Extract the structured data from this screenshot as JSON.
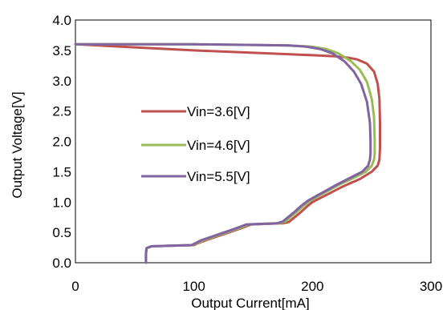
{
  "chart_data": {
    "type": "line",
    "title": "",
    "xlabel": "Output Current[mA]",
    "ylabel": "Output Voltage[V]",
    "xlim": [
      0,
      300
    ],
    "ylim": [
      0,
      4.0
    ],
    "x_ticks": [
      0,
      100,
      200,
      300
    ],
    "y_ticks": [
      0.0,
      0.5,
      1.0,
      1.5,
      2.0,
      2.5,
      3.0,
      3.5,
      4.0
    ],
    "x_tick_labels": [
      "0",
      "100",
      "200",
      "300"
    ],
    "y_tick_labels": [
      "0.0",
      "0.5",
      "1.0",
      "1.5",
      "2.0",
      "2.5",
      "3.0",
      "3.5",
      "4.0"
    ],
    "grid": false,
    "legend_position": "center-left",
    "series": [
      {
        "name": "Vin=3.6[V]",
        "color": "#c0504d",
        "points": [
          [
            0,
            3.6
          ],
          [
            50,
            3.55
          ],
          [
            100,
            3.5
          ],
          [
            150,
            3.46
          ],
          [
            200,
            3.42
          ],
          [
            220,
            3.4
          ],
          [
            230,
            3.38
          ],
          [
            238,
            3.35
          ],
          [
            246,
            3.28
          ],
          [
            252,
            3.15
          ],
          [
            255,
            2.95
          ],
          [
            256.5,
            2.7
          ],
          [
            257,
            2.3
          ],
          [
            257,
            1.9
          ],
          [
            256.5,
            1.7
          ],
          [
            255,
            1.6
          ],
          [
            250,
            1.5
          ],
          [
            240,
            1.38
          ],
          [
            225,
            1.25
          ],
          [
            210,
            1.1
          ],
          [
            200,
            1.0
          ],
          [
            195,
            0.92
          ],
          [
            190,
            0.83
          ],
          [
            185,
            0.75
          ],
          [
            180,
            0.67
          ],
          [
            175,
            0.65
          ],
          [
            160,
            0.64
          ],
          [
            148,
            0.63
          ],
          [
            140,
            0.57
          ],
          [
            125,
            0.47
          ],
          [
            110,
            0.37
          ],
          [
            103,
            0.32
          ],
          [
            100,
            0.29
          ],
          [
            80,
            0.28
          ],
          [
            64,
            0.27
          ],
          [
            60,
            0.24
          ],
          [
            59.5,
            0.15
          ],
          [
            59.5,
            0.0
          ]
        ]
      },
      {
        "name": "Vin=4.6[V]",
        "color": "#9bbb59",
        "points": [
          [
            0,
            3.6
          ],
          [
            100,
            3.6
          ],
          [
            150,
            3.59
          ],
          [
            180,
            3.58
          ],
          [
            200,
            3.56
          ],
          [
            212,
            3.52
          ],
          [
            222,
            3.45
          ],
          [
            232,
            3.33
          ],
          [
            240,
            3.18
          ],
          [
            246,
            2.98
          ],
          [
            250,
            2.7
          ],
          [
            252,
            2.4
          ],
          [
            252.5,
            2.0
          ],
          [
            252.5,
            1.8
          ],
          [
            252,
            1.7
          ],
          [
            250,
            1.6
          ],
          [
            245,
            1.5
          ],
          [
            235,
            1.4
          ],
          [
            222,
            1.28
          ],
          [
            208,
            1.13
          ],
          [
            198,
            1.02
          ],
          [
            192,
            0.93
          ],
          [
            187,
            0.84
          ],
          [
            182,
            0.76
          ],
          [
            177,
            0.68
          ],
          [
            172,
            0.65
          ],
          [
            158,
            0.64
          ],
          [
            146,
            0.63
          ],
          [
            138,
            0.57
          ],
          [
            123,
            0.47
          ],
          [
            108,
            0.37
          ],
          [
            102,
            0.32
          ],
          [
            99,
            0.29
          ],
          [
            80,
            0.28
          ],
          [
            64,
            0.27
          ],
          [
            60,
            0.24
          ],
          [
            59.5,
            0.15
          ],
          [
            59.5,
            0.0
          ]
        ]
      },
      {
        "name": "Vin=5.5[V]",
        "color": "#8064a2",
        "points": [
          [
            0,
            3.6
          ],
          [
            100,
            3.6
          ],
          [
            150,
            3.59
          ],
          [
            180,
            3.58
          ],
          [
            195,
            3.56
          ],
          [
            207,
            3.52
          ],
          [
            217,
            3.45
          ],
          [
            227,
            3.32
          ],
          [
            235,
            3.15
          ],
          [
            241,
            2.95
          ],
          [
            246,
            2.65
          ],
          [
            248.5,
            2.3
          ],
          [
            249,
            2.0
          ],
          [
            249,
            1.8
          ],
          [
            248.5,
            1.7
          ],
          [
            247,
            1.6
          ],
          [
            242,
            1.5
          ],
          [
            232,
            1.4
          ],
          [
            220,
            1.28
          ],
          [
            206,
            1.13
          ],
          [
            196,
            1.02
          ],
          [
            190,
            0.93
          ],
          [
            185,
            0.84
          ],
          [
            180,
            0.76
          ],
          [
            175,
            0.68
          ],
          [
            170,
            0.65
          ],
          [
            156,
            0.64
          ],
          [
            144,
            0.63
          ],
          [
            136,
            0.57
          ],
          [
            121,
            0.47
          ],
          [
            106,
            0.37
          ],
          [
            101,
            0.32
          ],
          [
            98,
            0.29
          ],
          [
            80,
            0.28
          ],
          [
            64,
            0.27
          ],
          [
            60,
            0.24
          ],
          [
            59.5,
            0.15
          ],
          [
            59.5,
            0.0
          ]
        ]
      }
    ]
  }
}
